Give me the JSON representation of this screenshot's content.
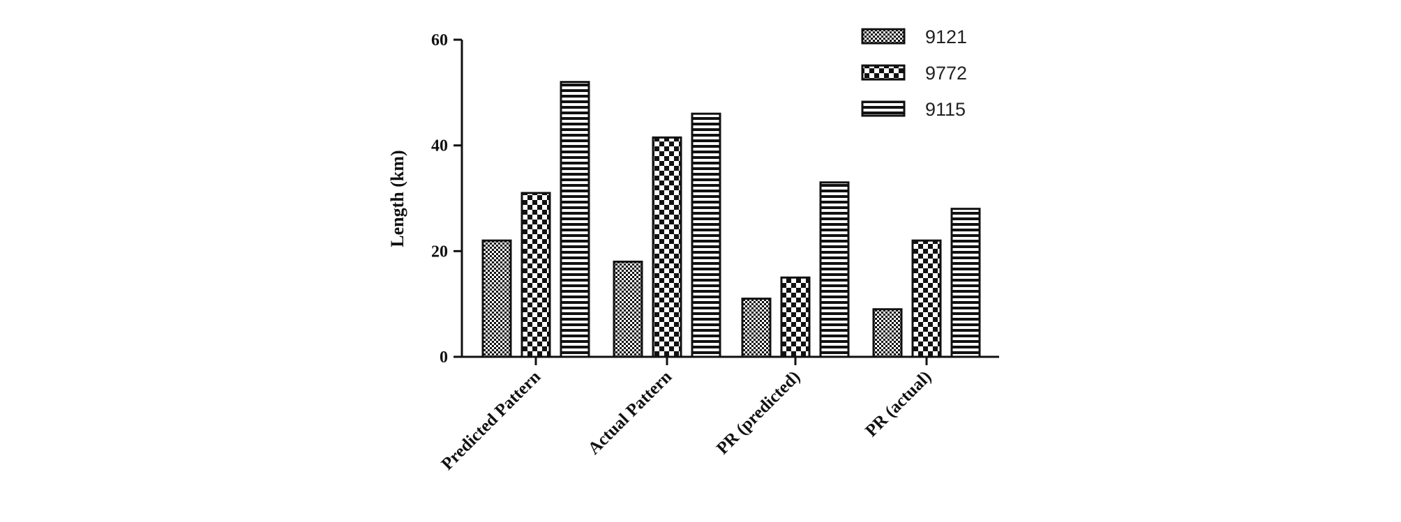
{
  "chart_data": {
    "type": "bar",
    "title": "",
    "xlabel": "",
    "ylabel": "Length (km)",
    "ylim": [
      0,
      60
    ],
    "yticks": [
      0,
      20,
      40,
      60
    ],
    "categories": [
      "Predicted Pattern",
      "Actual Pattern",
      "PR (predicted)",
      "PR (actual)"
    ],
    "series": [
      {
        "name": "9121",
        "values": [
          22,
          18,
          11,
          9
        ],
        "pattern": "fine-checker"
      },
      {
        "name": "9772",
        "values": [
          31,
          41.5,
          15,
          22
        ],
        "pattern": "coarse-checker"
      },
      {
        "name": "9115",
        "values": [
          52,
          46,
          33,
          28
        ],
        "pattern": "horizontal-stripes"
      }
    ],
    "legend_position": "top-right",
    "grid": false,
    "colors": {
      "ink": "#111111",
      "background": "#ffffff"
    }
  }
}
